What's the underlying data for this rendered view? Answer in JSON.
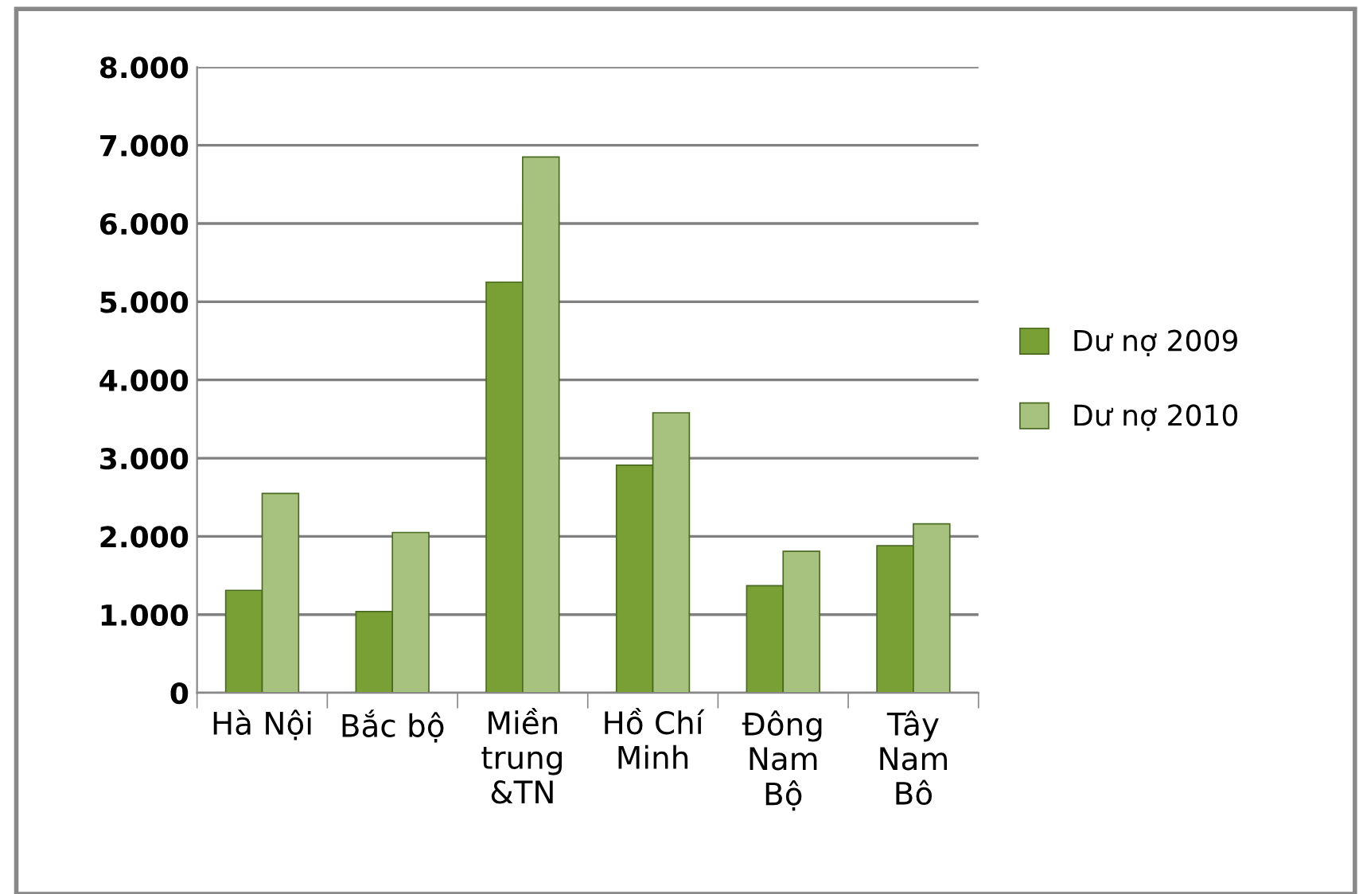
{
  "chart_data": {
    "type": "bar",
    "categories": [
      "Hà Nội",
      "Bắc bộ",
      "Miền\ntrung\n&TN",
      "Hồ Chí\nMinh",
      "Đông\nNam\nBộ",
      "Tây\nNam\nBô"
    ],
    "series": [
      {
        "name": "Dư nợ 2009",
        "color": "#78a034",
        "values": [
          1310,
          1040,
          5250,
          2910,
          1370,
          1880
        ]
      },
      {
        "name": "Dư nợ 2010",
        "color": "#a6c27e",
        "values": [
          2550,
          2050,
          6850,
          3580,
          1810,
          2160
        ]
      }
    ],
    "ylim": [
      0,
      8000
    ],
    "yticks": [
      0,
      {
        "value": 1000,
        "label": "1.000"
      },
      {
        "value": 2000,
        "label": "2.000"
      },
      {
        "value": 3000,
        "label": "3.000"
      },
      {
        "value": 4000,
        "label": "4.000"
      },
      {
        "value": 5000,
        "label": "5.000"
      },
      {
        "value": 6000,
        "label": "6.000"
      },
      {
        "value": 7000,
        "label": "7.000"
      },
      {
        "value": 8000,
        "label": "8.000"
      }
    ],
    "grid": "y",
    "legend": "right"
  }
}
